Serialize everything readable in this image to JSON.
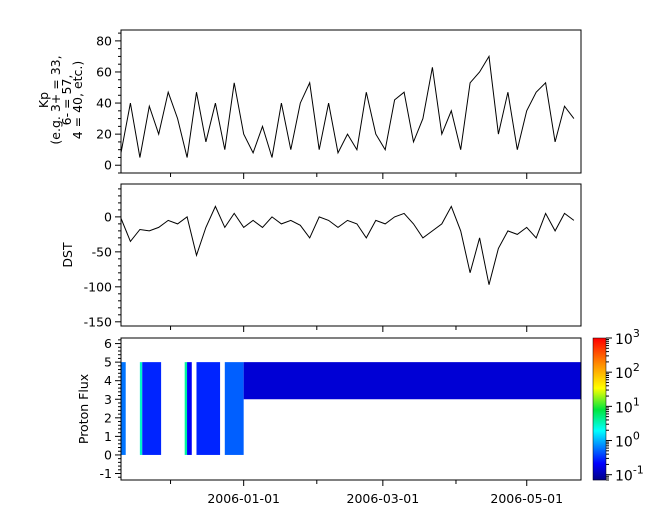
{
  "chart_data": [
    {
      "type": "line",
      "ylabel_lines": [
        "Kp",
        "(e.g. 3+ = 33,",
        "6- = 57,",
        "4 = 40, etc.)"
      ],
      "ylim": [
        -5,
        87
      ],
      "yticks": [
        0,
        20,
        40,
        60,
        80
      ],
      "x": [
        "2005-11-10",
        "2005-11-14",
        "2005-11-18",
        "2005-11-22",
        "2005-11-26",
        "2005-11-30",
        "2005-12-04",
        "2005-12-08",
        "2005-12-12",
        "2005-12-16",
        "2005-12-20",
        "2005-12-24",
        "2005-12-28",
        "2006-01-01",
        "2006-01-05",
        "2006-01-09",
        "2006-01-13",
        "2006-01-17",
        "2006-01-21",
        "2006-01-25",
        "2006-01-29",
        "2006-02-02",
        "2006-02-06",
        "2006-02-10",
        "2006-02-14",
        "2006-02-18",
        "2006-02-22",
        "2006-02-26",
        "2006-03-02",
        "2006-03-06",
        "2006-03-10",
        "2006-03-14",
        "2006-03-18",
        "2006-03-22",
        "2006-03-26",
        "2006-03-30",
        "2006-04-03",
        "2006-04-07",
        "2006-04-11",
        "2006-04-15",
        "2006-04-19",
        "2006-04-23",
        "2006-04-27",
        "2006-05-01",
        "2006-05-05",
        "2006-05-09",
        "2006-05-13",
        "2006-05-17",
        "2006-05-21"
      ],
      "values": [
        8,
        40,
        5,
        38,
        20,
        47,
        30,
        5,
        47,
        15,
        40,
        10,
        53,
        20,
        8,
        25,
        5,
        40,
        10,
        40,
        53,
        10,
        40,
        8,
        20,
        10,
        47,
        20,
        10,
        42,
        47,
        15,
        30,
        63,
        20,
        35,
        10,
        53,
        60,
        70,
        20,
        47,
        10,
        35,
        47,
        53,
        15,
        38,
        30
      ]
    },
    {
      "type": "line",
      "ylabel": "DST",
      "ylim": [
        -156,
        47
      ],
      "yticks": [
        0,
        -50,
        -100,
        -150
      ],
      "x_ref": "shared",
      "values": [
        -2,
        -35,
        -18,
        -20,
        -15,
        -5,
        -10,
        0,
        -55,
        -15,
        15,
        -15,
        5,
        -15,
        -5,
        -15,
        0,
        -10,
        -5,
        -12,
        -30,
        0,
        -5,
        -15,
        -5,
        -10,
        -30,
        -5,
        -10,
        0,
        5,
        -10,
        -30,
        -20,
        -10,
        15,
        -20,
        -80,
        -30,
        -97,
        -45,
        -20,
        -25,
        -15,
        -30,
        5,
        -20,
        5,
        -5
      ]
    },
    {
      "type": "heatmap",
      "ylabel": "Proton Flux",
      "ylim": [
        -1.35,
        6.3
      ],
      "yticks": [
        -1,
        0,
        1,
        2,
        3,
        4,
        5,
        6
      ],
      "xlim": [
        "2005-11-10",
        "2006-05-24"
      ],
      "xticks": [
        "2006-01-01",
        "2006-03-01",
        "2006-05-01"
      ],
      "minor_xticks": [
        "2005-12-01",
        "2006-02-01",
        "2006-04-01"
      ],
      "colorbar": {
        "scale": "log",
        "range": [
          0.07,
          1000
        ],
        "tick_labels": [
          {
            "base": "10",
            "exp": "-1",
            "value": 0.1
          },
          {
            "base": "10",
            "exp": "0",
            "value": 1
          },
          {
            "base": "10",
            "exp": "1",
            "value": 10
          },
          {
            "base": "10",
            "exp": "2",
            "value": 100
          },
          {
            "base": "10",
            "exp": "3",
            "value": 1000
          }
        ]
      },
      "segments": [
        {
          "start": "2005-11-10",
          "end": "2005-11-12",
          "ymin": 0,
          "ymax": 5,
          "flux": 0.6
        },
        {
          "start": "2005-11-18",
          "end": "2005-11-19",
          "ymin": 0,
          "ymax": 5,
          "flux": 3
        },
        {
          "start": "2005-11-19",
          "end": "2005-11-27",
          "ymin": 0,
          "ymax": 5,
          "flux": 0.3
        },
        {
          "start": "2005-12-07",
          "end": "2005-12-08",
          "ymin": 0,
          "ymax": 5,
          "flux": 4
        },
        {
          "start": "2005-12-08",
          "end": "2005-12-10",
          "ymin": 0,
          "ymax": 5,
          "flux": 0.2
        },
        {
          "start": "2005-12-12",
          "end": "2005-12-22",
          "ymin": 0,
          "ymax": 5,
          "flux": 0.3
        },
        {
          "start": "2005-12-24",
          "end": "2006-01-01",
          "ymin": 0,
          "ymax": 5,
          "flux": 0.5
        },
        {
          "start": "2006-01-01",
          "end": "2006-05-24",
          "ymin": 3,
          "ymax": 5,
          "flux": 0.15
        }
      ]
    }
  ],
  "colors": {
    "line": "#000000",
    "axis": "#000000"
  }
}
